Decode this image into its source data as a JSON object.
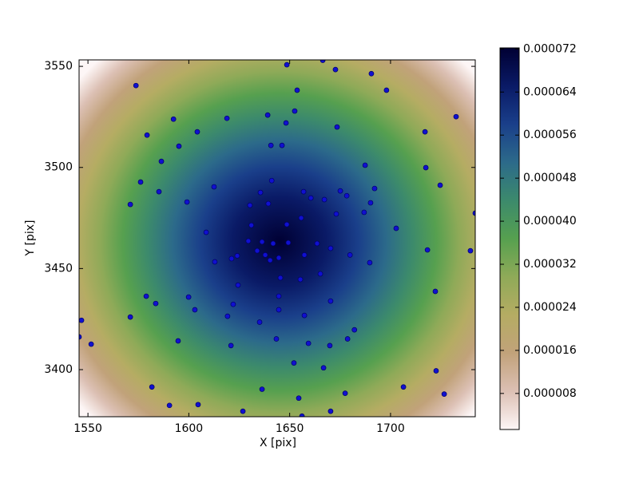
{
  "chart_data": {
    "type": "scatter",
    "xlabel": "X [pix]",
    "ylabel": "Y [pix]",
    "xlim": [
      1545.6,
      1742
    ],
    "ylim": [
      3376.7,
      3553.2
    ],
    "xticks": [
      1550,
      1600,
      1650,
      1700
    ],
    "yticks": [
      3400,
      3450,
      3500,
      3550
    ],
    "color": "#1010d0",
    "x": [
      1573.8,
      1648.6,
      1666.4,
      1672.7,
      1690.5,
      1698,
      1653.7,
      1732.5,
      1592.4,
      1618.9,
      1639.1,
      1652.5,
      1648.2,
      1673.5,
      1579.3,
      1604.2,
      1717.1,
      1595.1,
      1640.7,
      1646.2,
      1586.4,
      1687.4,
      1717.5,
      1576.1,
      1641.1,
      1724.6,
      1612.5,
      1692.1,
      1585.2,
      1635.5,
      1656.9,
      1675.1,
      1678.3,
      1660.5,
      1667.2,
      1599.1,
      1571,
      1630.3,
      1639.4,
      1690.1,
      1686.9,
      1673.1,
      1655.7,
      1742,
      1648.6,
      1631,
      1702.8,
      1608.6,
      1629.5,
      1636.3,
      1649.3,
      1663.6,
      1641.8,
      1670.3,
      1633.9,
      1739.6,
      1718.3,
      1637.9,
      1657.3,
      1679.9,
      1624,
      1621.2,
      1640.3,
      1644.6,
      1612.9,
      1689.7,
      1665.2,
      1645.4,
      1655.3,
      1624.4,
      1722.2,
      1578.9,
      1599.9,
      1644.6,
      1670.3,
      1583.6,
      1622,
      1603,
      1644.6,
      1571,
      1619.2,
      1657.3,
      1546.8,
      1635.1,
      1682.1,
      1545.6,
      1643.4,
      1678.7,
      1594.7,
      1551.6,
      1659.3,
      1620.9,
      1669.9,
      1652.1,
      1666.8,
      1722.6,
      1581.7,
      1706.4,
      1636.3,
      1677.5,
      1726.6,
      1654.5,
      1590.4,
      1604.6,
      1626.8,
      1670.3,
      1656.1
    ],
    "y": [
      3540.5,
      3550.8,
      3553,
      3548.4,
      3546.4,
      3538.2,
      3538.2,
      3525.1,
      3523.9,
      3524.3,
      3525.9,
      3527.9,
      3522,
      3520,
      3516,
      3517.6,
      3517.6,
      3510.5,
      3510.9,
      3510.9,
      3503,
      3501.1,
      3499.9,
      3492.8,
      3493.5,
      3491.2,
      3490.4,
      3489.6,
      3488,
      3487.6,
      3488,
      3488.4,
      3486,
      3484.9,
      3484.1,
      3482.9,
      3481.7,
      3481.3,
      3482.1,
      3482.5,
      3477.8,
      3477,
      3475,
      3477.4,
      3471.8,
      3471.4,
      3469.9,
      3467.9,
      3463.6,
      3463.2,
      3462.8,
      3462.4,
      3462.4,
      3460,
      3458.8,
      3458.8,
      3459.2,
      3456.7,
      3456.7,
      3456.7,
      3456.3,
      3454.9,
      3454.1,
      3455.3,
      3453.3,
      3452.9,
      3447.4,
      3445.4,
      3444.6,
      3441.8,
      3438.7,
      3436.3,
      3435.9,
      3436.3,
      3433.9,
      3432.7,
      3432.3,
      3429.6,
      3429.6,
      3426,
      3426.4,
      3426.8,
      3424.4,
      3423.5,
      3419.7,
      3416.2,
      3415.2,
      3415.2,
      3414.2,
      3412.6,
      3413,
      3411.9,
      3411.9,
      3403.3,
      3400.9,
      3399.4,
      3391.4,
      3391.4,
      3390.3,
      3388.3,
      3387.9,
      3385.9,
      3382.3,
      3382.7,
      3379.4,
      3379.4,
      3377
    ],
    "colormap": [
      "#fdf6f6",
      "#dcc0b4",
      "#c1a27a",
      "#b5ac63",
      "#8faa58",
      "#56a04f",
      "#3c8a6c",
      "#2c6a8a",
      "#1a3f8a",
      "#0a1a66",
      "#000033"
    ],
    "colorbar_lim": [
      1.3e-06,
      7.22e-05
    ],
    "colorbar_ticks": [
      {
        "value": 8e-06,
        "label": "0.000008"
      },
      {
        "value": 1.6e-05,
        "label": "0.000016"
      },
      {
        "value": 2.4e-05,
        "label": "0.000024"
      },
      {
        "value": 3.2e-05,
        "label": "0.000032"
      },
      {
        "value": 4e-05,
        "label": "0.000040"
      },
      {
        "value": 4.8e-05,
        "label": "0.000048"
      },
      {
        "value": 5.6e-05,
        "label": "0.000056"
      },
      {
        "value": 6.4e-05,
        "label": "0.000064"
      },
      {
        "value": 7.2e-05,
        "label": "0.000072"
      }
    ]
  }
}
